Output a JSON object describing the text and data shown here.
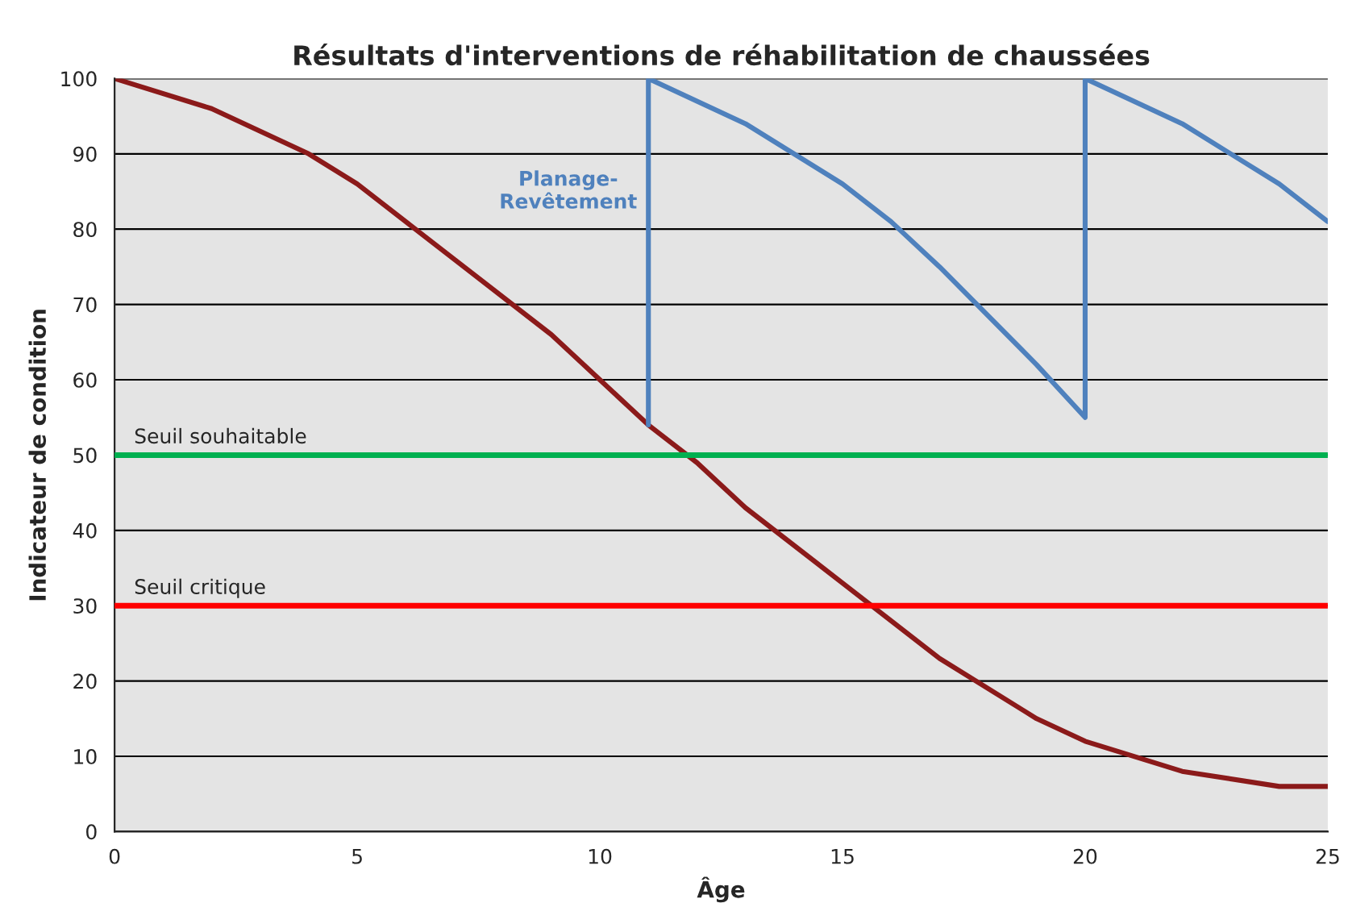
{
  "chart_data": {
    "type": "line",
    "title": "Résultats d'interventions de réhabilitation de chaussées",
    "xlabel": "Âge",
    "ylabel": "Indicateur de condition",
    "xlim": [
      0,
      25
    ],
    "ylim": [
      0,
      100
    ],
    "xticks": [
      0,
      5,
      10,
      15,
      20,
      25
    ],
    "yticks": [
      0,
      10,
      20,
      30,
      40,
      50,
      60,
      70,
      80,
      90,
      100
    ],
    "grid": "y",
    "legend": false,
    "marker": "none",
    "line_style": "solid",
    "series": [
      {
        "color": "#8b1a1a",
        "x": [
          0,
          2,
          4,
          5,
          7,
          9,
          10,
          11,
          12,
          13,
          15,
          17,
          19,
          20,
          22,
          24,
          25
        ],
        "values": [
          100,
          96,
          90,
          86,
          76,
          66,
          60,
          54,
          49,
          43,
          33,
          23,
          15,
          12,
          8,
          6,
          6
        ]
      },
      {
        "color": "#4f81bd",
        "x": [
          11,
          11,
          13,
          15,
          16,
          17,
          19,
          20,
          20,
          22,
          24,
          25
        ],
        "values": [
          54,
          100,
          94,
          86,
          81,
          75,
          62,
          55,
          100,
          94,
          86,
          81
        ]
      }
    ],
    "ref_lines": [
      {
        "axis": "y",
        "value": 50,
        "label": "Seuil souhaitable",
        "color": "#00b050",
        "line_style": "solid"
      },
      {
        "axis": "y",
        "value": 30,
        "label": "Seuil critique",
        "color": "#ff0000",
        "line_style": "solid"
      }
    ],
    "annotations": [
      {
        "text": "Planage-\nRevêtement",
        "x": 11,
        "y": 85
      }
    ]
  }
}
